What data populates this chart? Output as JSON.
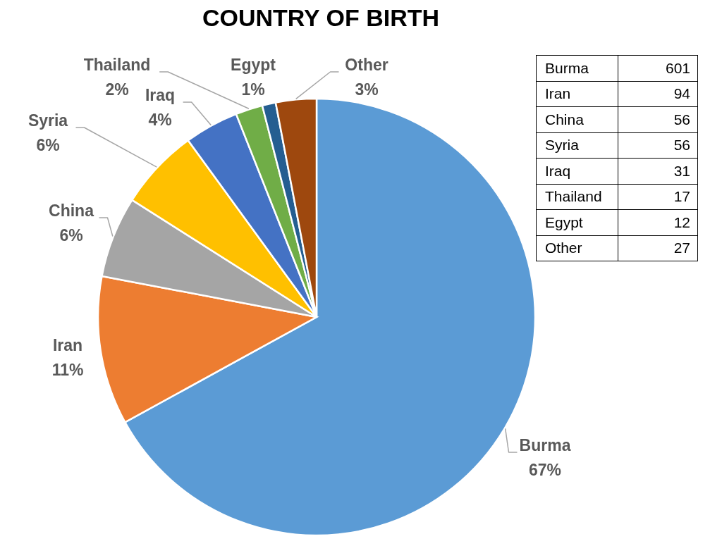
{
  "chart_data": [
    {
      "type": "pie",
      "title": "COUNTRY OF BIRTH",
      "categories": [
        "Burma",
        "Iran",
        "China",
        "Syria",
        "Iraq",
        "Thailand",
        "Egypt",
        "Other"
      ],
      "values": [
        67,
        11,
        6,
        6,
        4,
        2,
        1,
        3
      ],
      "colors": [
        "#5b9bd5",
        "#ed7d31",
        "#a5a5a5",
        "#ffc000",
        "#4472c4",
        "#70ad47",
        "#255e91",
        "#9e480e"
      ],
      "value_labels": [
        "67%",
        "11%",
        "6%",
        "6%",
        "4%",
        "2%",
        "1%",
        "3%"
      ]
    },
    {
      "type": "other",
      "categories": [
        "Burma",
        "Iran",
        "China",
        "Syria",
        "Iraq",
        "Thailand",
        "Egypt",
        "Other"
      ],
      "values": [
        601,
        94,
        56,
        56,
        31,
        17,
        12,
        27
      ],
      "data_labels": true
    }
  ]
}
